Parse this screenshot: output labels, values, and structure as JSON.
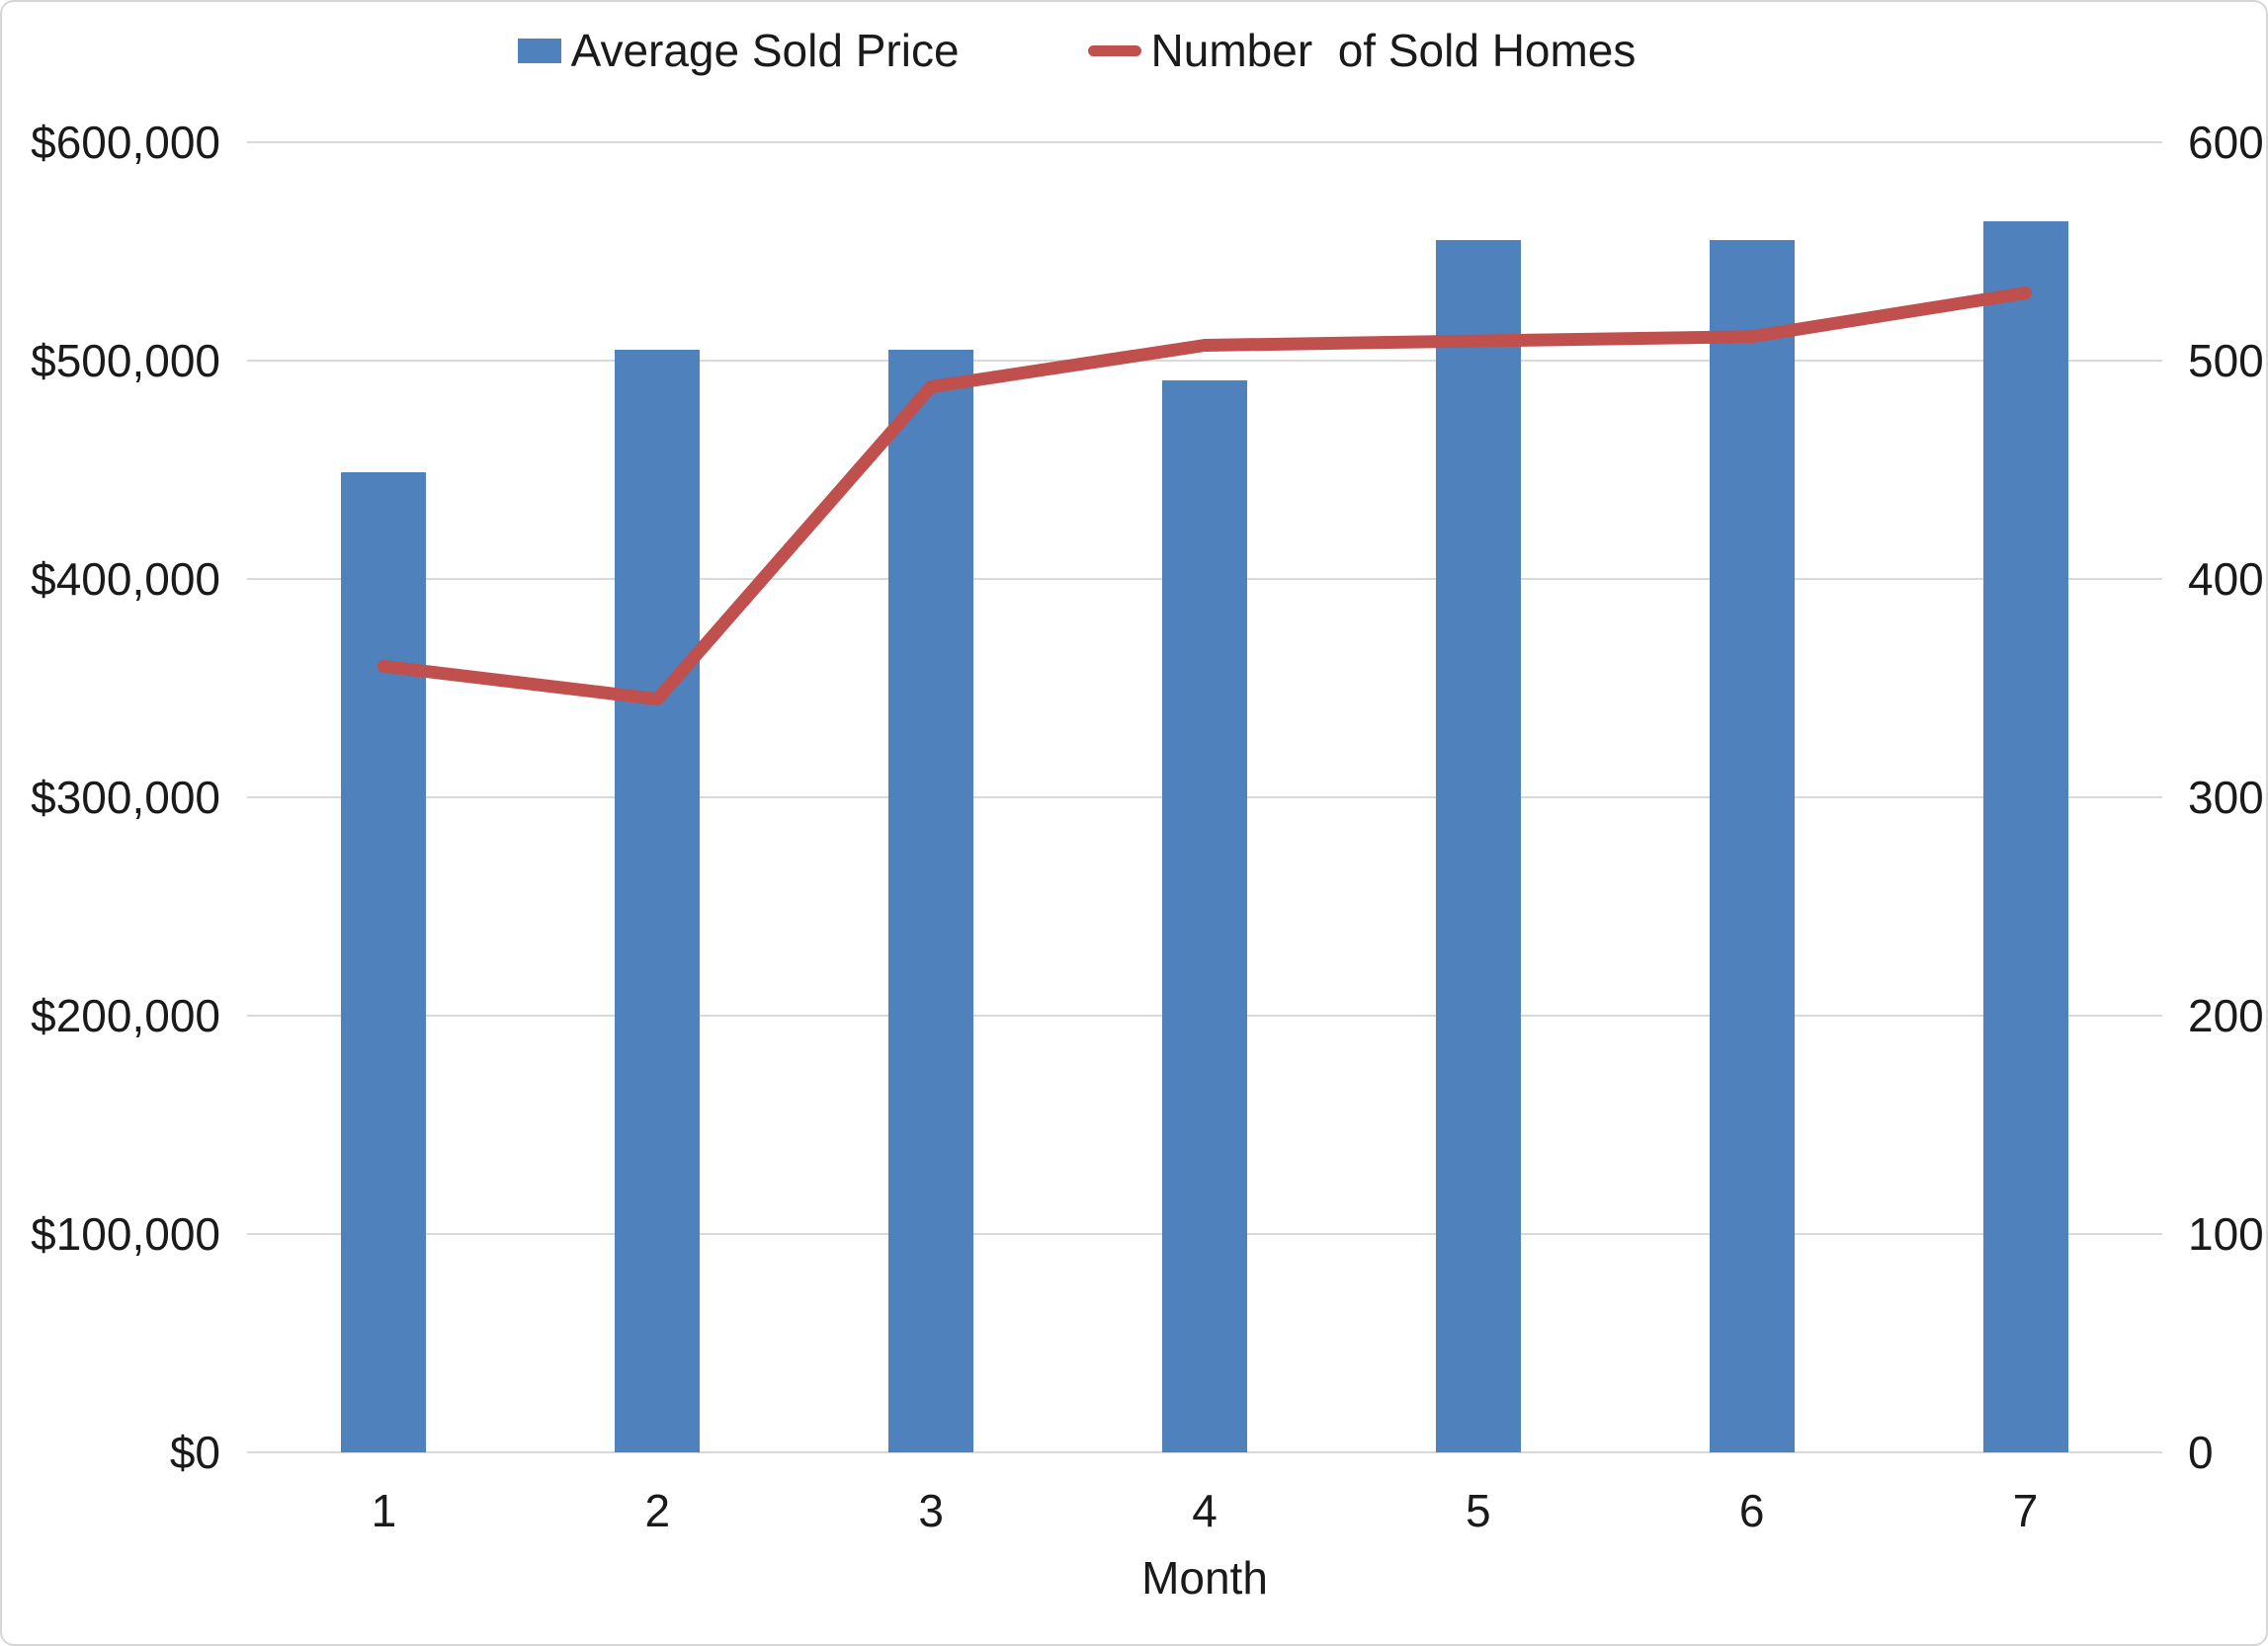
{
  "chart_data": {
    "type": "combo",
    "categories": [
      "1",
      "2",
      "3",
      "4",
      "5",
      "6",
      "7"
    ],
    "series": [
      {
        "name": "Average Sold Price",
        "type": "bar",
        "axis": "left",
        "color": "#4F81BD",
        "values": [
          449000,
          505000,
          505000,
          491000,
          555000,
          555000,
          564000
        ]
      },
      {
        "name": "Number  of Sold Homes",
        "type": "line",
        "axis": "right",
        "color": "#C0504D",
        "values": [
          360,
          345,
          488,
          507,
          509,
          511,
          531
        ]
      }
    ],
    "left_axis": {
      "min": 0,
      "max": 600000,
      "step": 100000,
      "tick_labels_top_to_bottom": [
        "$600,000",
        "$500,000",
        "$400,000",
        "$300,000",
        "$200,000",
        "$100,000",
        "$0"
      ]
    },
    "right_axis": {
      "min": 0,
      "max": 600,
      "step": 100,
      "tick_labels_top_to_bottom": [
        "600",
        "500",
        "400",
        "300",
        "200",
        "100",
        "0"
      ]
    },
    "xlabel": "Month",
    "legend_position": "top",
    "grid": true,
    "gridline_color": "#d9d9d9",
    "background_color": "#ffffff",
    "border_color": "#d6d6d6",
    "text_color": "#1a1a1a"
  }
}
